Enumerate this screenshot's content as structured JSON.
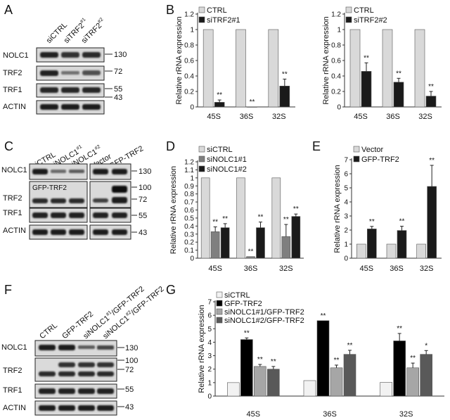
{
  "panel_letters": {
    "A": "A",
    "B": "B",
    "C": "C",
    "D": "D",
    "E": "E",
    "F": "F",
    "G": "G"
  },
  "blots": {
    "A": {
      "lanes": [
        "siCTRL",
        "siTRF2",
        "siTRF2"
      ],
      "lane_sups": [
        "",
        "#1",
        "#2"
      ],
      "rows": [
        "NOLC1",
        "TRF2",
        "TRF1",
        "ACTIN"
      ],
      "markers": [
        "130",
        "72",
        "55",
        "43"
      ]
    },
    "C": {
      "lanes": [
        "siCTRL",
        "siNOLC1",
        "siNOLC1",
        "Vector",
        "GFP-TRF2"
      ],
      "lane_sups": [
        "",
        "#1",
        "#2",
        "",
        ""
      ],
      "rows": [
        "NOLC1",
        "TRF2",
        "TRF1",
        "ACTIN"
      ],
      "inset_label": "GFP-TRF2",
      "markers": [
        "130",
        "100",
        "72",
        "55",
        "43"
      ]
    },
    "F": {
      "lanes": [
        "CTRL",
        "GFP-TRF2",
        "siNOLC1",
        "siNOLC1"
      ],
      "lane_sups": [
        "",
        "",
        "#1",
        "#2"
      ],
      "lane_suffix": "/GFP-TRF2",
      "rows": [
        "NOLC1",
        "TRF2",
        "TRF1",
        "ACTIN"
      ],
      "markers": [
        "130",
        "100",
        "72",
        "55",
        "43"
      ]
    }
  },
  "chart_data": [
    {
      "panel": "B-left",
      "type": "bar",
      "categories": [
        "45S",
        "36S",
        "32S"
      ],
      "series": [
        {
          "name": "CTRL",
          "color": "#d9d9d9",
          "values": [
            1,
            1,
            1
          ],
          "errors": [
            0,
            0,
            0
          ],
          "sig": [
            "",
            "",
            ""
          ]
        },
        {
          "name": "siTRF2#1",
          "color": "#1a1a1a",
          "values": [
            0.06,
            0.0,
            0.27
          ],
          "errors": [
            0.03,
            0.0,
            0.09
          ],
          "sig": [
            "**",
            "**",
            "**"
          ]
        }
      ],
      "ylabel": "Relative rRNA expression",
      "ylim": [
        0,
        1.2
      ],
      "yticks": [
        "0",
        "0.2",
        "0.4",
        "0.6",
        "0.8",
        "1",
        "1.2"
      ],
      "legend": "top-left"
    },
    {
      "panel": "B-right",
      "type": "bar",
      "categories": [
        "45S",
        "36S",
        "32S"
      ],
      "series": [
        {
          "name": "CTRL",
          "color": "#d9d9d9",
          "values": [
            1,
            1,
            1
          ],
          "errors": [
            0,
            0,
            0
          ],
          "sig": [
            "",
            "",
            ""
          ]
        },
        {
          "name": "siTRF2#2",
          "color": "#1a1a1a",
          "values": [
            0.46,
            0.32,
            0.14
          ],
          "errors": [
            0.11,
            0.05,
            0.06
          ],
          "sig": [
            "**",
            "**",
            "**"
          ]
        }
      ],
      "ylabel": "Relative rRNA expression",
      "ylim": [
        0,
        1.2
      ],
      "yticks": [
        "0",
        "0.2",
        "0.4",
        "0.6",
        "0.8",
        "1",
        "1.2"
      ],
      "legend": "top-left"
    },
    {
      "panel": "D",
      "type": "bar",
      "categories": [
        "45S",
        "36S",
        "32S"
      ],
      "series": [
        {
          "name": "siCTRL",
          "color": "#d9d9d9",
          "values": [
            1,
            1,
            1
          ],
          "errors": [
            0,
            0,
            0
          ],
          "sig": [
            "",
            "",
            ""
          ]
        },
        {
          "name": "siNOLC1#1",
          "color": "#7f7f7f",
          "values": [
            0.33,
            0.02,
            0.27
          ],
          "errors": [
            0.06,
            0.0,
            0.15
          ],
          "sig": [
            "**",
            "**",
            "**"
          ]
        },
        {
          "name": "siNOLC1#2",
          "color": "#1a1a1a",
          "values": [
            0.38,
            0.38,
            0.52
          ],
          "errors": [
            0.05,
            0.07,
            0.03
          ],
          "sig": [
            "**",
            "**",
            "**"
          ]
        }
      ],
      "ylabel": "Relative rRNA expression",
      "ylim": [
        0,
        1.2
      ],
      "yticks": [
        "0",
        "0.1",
        "0.2",
        "0.3",
        "0.4",
        "0.5",
        "0.6",
        "0.7",
        "0.8",
        "0.9",
        "1",
        "1.1",
        "1.2"
      ],
      "legend": "top-left"
    },
    {
      "panel": "E",
      "type": "bar",
      "categories": [
        "45S",
        "36S",
        "32S"
      ],
      "series": [
        {
          "name": "Vector",
          "color": "#d9d9d9",
          "values": [
            1,
            1,
            1
          ],
          "errors": [
            0,
            0,
            0
          ],
          "sig": [
            "",
            "",
            ""
          ]
        },
        {
          "name": "GFP-TRF2",
          "color": "#1a1a1a",
          "values": [
            2.08,
            1.97,
            5.1
          ],
          "errors": [
            0.18,
            0.3,
            1.5
          ],
          "sig": [
            "**",
            "**",
            "**"
          ]
        }
      ],
      "ylabel": "Relative rRNA expression",
      "ylim": [
        0,
        7
      ],
      "yticks": [
        "0",
        "1",
        "2",
        "3",
        "4",
        "5",
        "6",
        "7"
      ],
      "legend": "top-left"
    },
    {
      "panel": "G",
      "type": "bar",
      "categories": [
        "45S",
        "36S",
        "32S"
      ],
      "series": [
        {
          "name": "siCTRL",
          "color": "#f2f2f2",
          "values": [
            1,
            1.15,
            1.02
          ],
          "errors": [
            0,
            0,
            0
          ],
          "sig": [
            "",
            "",
            ""
          ]
        },
        {
          "name": "GFP-TRF2",
          "color": "#000000",
          "values": [
            4.2,
            5.6,
            4.1
          ],
          "errors": [
            0.12,
            0.0,
            0.55
          ],
          "sig": [
            "**",
            "**",
            "**"
          ]
        },
        {
          "name": "siNOLC1#1/GFP-TRF2",
          "color": "#a6a6a6",
          "values": [
            2.2,
            2.1,
            2.1
          ],
          "errors": [
            0.15,
            0.2,
            0.35
          ],
          "sig": [
            "**",
            "**",
            "**"
          ]
        },
        {
          "name": "siNOLC1#2/GFP-TRF2",
          "color": "#595959",
          "values": [
            2.0,
            3.1,
            3.1
          ],
          "errors": [
            0.2,
            0.3,
            0.28
          ],
          "sig": [
            "**",
            "**",
            "*"
          ]
        }
      ],
      "ylabel": "Relative rRNA expression",
      "ylim": [
        0,
        7
      ],
      "yticks": [
        "0",
        "1",
        "2",
        "3",
        "4",
        "5",
        "6",
        "7"
      ],
      "legend": "top-left"
    }
  ]
}
